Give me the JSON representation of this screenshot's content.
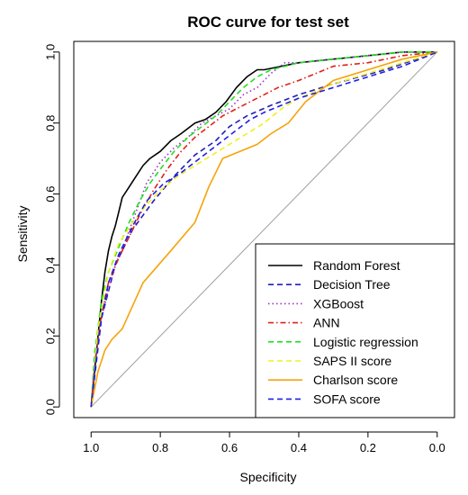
{
  "chart_data": {
    "type": "line",
    "title": "ROC curve for test set",
    "xlabel": "Specificity",
    "ylabel": "Sensitivity",
    "xlim": [
      1.05,
      -0.05
    ],
    "ylim": [
      -0.03,
      1.03
    ],
    "x_reversed": true,
    "grid": false,
    "legend_position": "bottom-right",
    "xticks": [
      1.0,
      0.8,
      0.6,
      0.4,
      0.2,
      0.0
    ],
    "xtick_labels": [
      "1.0",
      "0.8",
      "0.6",
      "0.4",
      "0.2",
      "0.0"
    ],
    "yticks": [
      0.0,
      0.2,
      0.4,
      0.6,
      0.8,
      1.0
    ],
    "ytick_labels": [
      "0.0",
      "0.2",
      "0.4",
      "0.6",
      "0.8",
      "1.0"
    ],
    "reference_line": {
      "from": [
        1.0,
        0.0
      ],
      "to": [
        0.0,
        1.0
      ],
      "color": "#a0a0a0"
    },
    "series": [
      {
        "name": "Random Forest",
        "color": "#000000",
        "dash": "solid",
        "x": [
          1.0,
          0.99,
          0.98,
          0.97,
          0.96,
          0.95,
          0.94,
          0.93,
          0.92,
          0.91,
          0.89,
          0.87,
          0.85,
          0.83,
          0.8,
          0.77,
          0.74,
          0.7,
          0.67,
          0.64,
          0.61,
          0.58,
          0.55,
          0.52,
          0.5,
          0.45,
          0.4,
          0.3,
          0.2,
          0.1,
          0.0
        ],
        "y": [
          0.0,
          0.1,
          0.2,
          0.3,
          0.38,
          0.44,
          0.48,
          0.51,
          0.55,
          0.59,
          0.62,
          0.65,
          0.68,
          0.7,
          0.72,
          0.75,
          0.77,
          0.8,
          0.81,
          0.83,
          0.86,
          0.9,
          0.93,
          0.95,
          0.95,
          0.96,
          0.97,
          0.98,
          0.99,
          1.0,
          1.0
        ]
      },
      {
        "name": "Decision Tree",
        "color": "#1f1fb8",
        "dash": "dashed",
        "x": [
          1.0,
          0.97,
          0.93,
          0.88,
          0.82,
          0.76,
          0.7,
          0.64,
          0.6,
          0.55,
          0.48,
          0.4,
          0.3,
          0.15,
          0.0
        ],
        "y": [
          0.0,
          0.25,
          0.4,
          0.5,
          0.58,
          0.65,
          0.71,
          0.75,
          0.79,
          0.82,
          0.85,
          0.88,
          0.91,
          0.95,
          1.0
        ]
      },
      {
        "name": "XGBoost",
        "color": "#9a32cd",
        "dash": "dotted",
        "x": [
          1.0,
          0.99,
          0.97,
          0.95,
          0.93,
          0.9,
          0.87,
          0.84,
          0.8,
          0.76,
          0.72,
          0.68,
          0.64,
          0.6,
          0.56,
          0.52,
          0.48,
          0.44,
          0.4,
          0.3,
          0.2,
          0.1,
          0.0
        ],
        "y": [
          0.0,
          0.12,
          0.25,
          0.33,
          0.4,
          0.47,
          0.55,
          0.63,
          0.69,
          0.73,
          0.76,
          0.8,
          0.82,
          0.84,
          0.88,
          0.9,
          0.94,
          0.97,
          0.97,
          0.98,
          0.99,
          1.0,
          1.0
        ]
      },
      {
        "name": "ANN",
        "color": "#e0201a",
        "dash": "dashdot",
        "x": [
          1.0,
          0.99,
          0.97,
          0.95,
          0.92,
          0.89,
          0.86,
          0.82,
          0.78,
          0.74,
          0.7,
          0.66,
          0.62,
          0.58,
          0.54,
          0.5,
          0.46,
          0.4,
          0.35,
          0.3,
          0.2,
          0.1,
          0.0
        ],
        "y": [
          0.0,
          0.12,
          0.26,
          0.35,
          0.42,
          0.48,
          0.54,
          0.61,
          0.67,
          0.72,
          0.76,
          0.79,
          0.82,
          0.84,
          0.86,
          0.88,
          0.9,
          0.92,
          0.94,
          0.96,
          0.97,
          0.99,
          1.0
        ]
      },
      {
        "name": "Logistic regression",
        "color": "#22e022",
        "dash": "dashed",
        "x": [
          1.0,
          0.99,
          0.97,
          0.95,
          0.92,
          0.89,
          0.86,
          0.83,
          0.8,
          0.76,
          0.72,
          0.68,
          0.64,
          0.6,
          0.56,
          0.52,
          0.48,
          0.44,
          0.4,
          0.3,
          0.2,
          0.1,
          0.0
        ],
        "y": [
          0.0,
          0.15,
          0.3,
          0.38,
          0.45,
          0.52,
          0.58,
          0.63,
          0.67,
          0.72,
          0.76,
          0.79,
          0.82,
          0.86,
          0.9,
          0.93,
          0.95,
          0.96,
          0.97,
          0.98,
          0.99,
          1.0,
          1.0
        ]
      },
      {
        "name": "SAPS II score",
        "color": "#f0f020",
        "dash": "dashed",
        "x": [
          1.0,
          0.98,
          0.95,
          0.92,
          0.88,
          0.84,
          0.8,
          0.75,
          0.7,
          0.65,
          0.6,
          0.55,
          0.5,
          0.45,
          0.4,
          0.3,
          0.2,
          0.1,
          0.0
        ],
        "y": [
          0.0,
          0.22,
          0.38,
          0.46,
          0.52,
          0.57,
          0.61,
          0.65,
          0.68,
          0.71,
          0.74,
          0.77,
          0.8,
          0.84,
          0.87,
          0.91,
          0.94,
          0.97,
          1.0
        ]
      },
      {
        "name": "Charlson score",
        "color": "#f5a30a",
        "dash": "solid",
        "x": [
          1.0,
          0.98,
          0.96,
          0.94,
          0.91,
          0.85,
          0.77,
          0.7,
          0.66,
          0.62,
          0.57,
          0.52,
          0.48,
          0.43,
          0.38,
          0.3,
          0.2,
          0.1,
          0.0
        ],
        "y": [
          0.0,
          0.1,
          0.16,
          0.19,
          0.22,
          0.35,
          0.44,
          0.52,
          0.62,
          0.7,
          0.72,
          0.74,
          0.77,
          0.8,
          0.86,
          0.92,
          0.95,
          0.98,
          1.0
        ]
      },
      {
        "name": "SOFA score",
        "color": "#1f1fe8",
        "dash": "dashed",
        "x": [
          1.0,
          0.99,
          0.97,
          0.95,
          0.92,
          0.88,
          0.84,
          0.79,
          0.74,
          0.7,
          0.66,
          0.62,
          0.58,
          0.54,
          0.5,
          0.45,
          0.4,
          0.3,
          0.2,
          0.1,
          0.0
        ],
        "y": [
          0.0,
          0.1,
          0.25,
          0.35,
          0.43,
          0.51,
          0.58,
          0.63,
          0.66,
          0.69,
          0.72,
          0.75,
          0.78,
          0.81,
          0.83,
          0.85,
          0.87,
          0.9,
          0.93,
          0.96,
          1.0
        ]
      }
    ]
  }
}
